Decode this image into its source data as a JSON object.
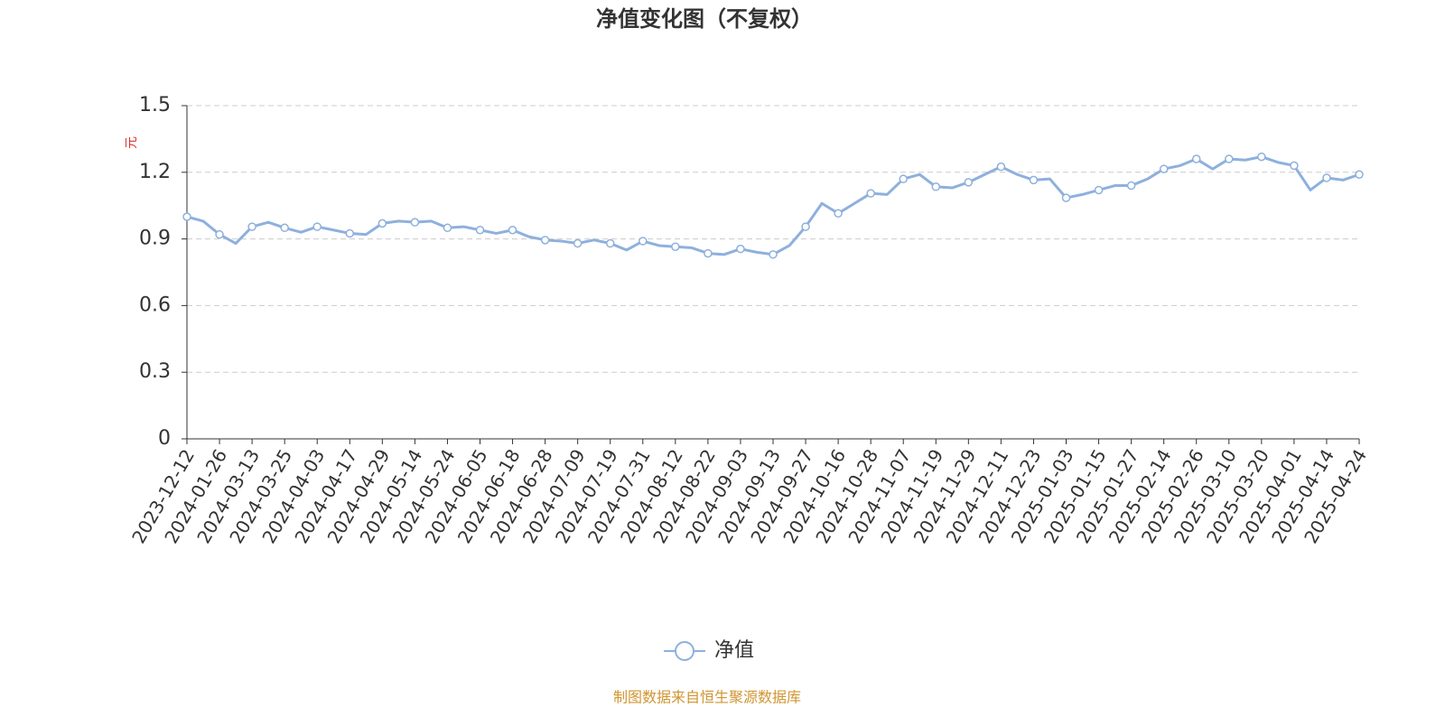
{
  "chart_data": {
    "type": "line",
    "title": "净值变化图（不复权）",
    "ylabel": "元",
    "source": "制图数据来自恒生聚源数据库",
    "ylim": [
      0,
      1.5
    ],
    "yticks": [
      0,
      0.3,
      0.6,
      0.9,
      1.2,
      1.5
    ],
    "grid": true,
    "legend": "bottom",
    "categories": [
      "2023-12-12",
      null,
      "2024-01-26",
      null,
      "2024-03-13",
      null,
      "2024-03-25",
      null,
      "2024-04-03",
      null,
      "2024-04-17",
      null,
      "2024-04-29",
      null,
      "2024-05-14",
      null,
      "2024-05-24",
      null,
      "2024-06-05",
      null,
      "2024-06-18",
      null,
      "2024-06-28",
      null,
      "2024-07-09",
      null,
      "2024-07-19",
      null,
      "2024-07-31",
      null,
      "2024-08-12",
      null,
      "2024-08-22",
      null,
      "2024-09-03",
      null,
      "2024-09-13",
      null,
      "2024-09-27",
      null,
      "2024-10-16",
      null,
      "2024-10-28",
      null,
      "2024-11-07",
      null,
      "2024-11-19",
      null,
      "2024-11-29",
      null,
      "2024-12-11",
      null,
      "2024-12-23",
      null,
      "2025-01-03",
      null,
      "2025-01-15",
      null,
      "2025-01-27",
      null,
      "2025-02-14",
      null,
      "2025-02-26",
      null,
      "2025-03-10",
      null,
      "2025-03-20",
      null,
      "2025-04-01",
      null,
      "2025-04-14",
      null,
      "2025-04-24"
    ],
    "series": [
      {
        "name": "净值",
        "color": "#8eb0dd",
        "values": [
          1.0,
          0.98,
          0.92,
          0.88,
          0.955,
          0.975,
          0.95,
          0.93,
          0.955,
          0.94,
          0.925,
          0.92,
          0.97,
          0.98,
          0.975,
          0.98,
          0.95,
          0.955,
          0.94,
          0.925,
          0.94,
          0.91,
          0.895,
          0.89,
          0.88,
          0.895,
          0.88,
          0.85,
          0.89,
          0.87,
          0.865,
          0.86,
          0.835,
          0.83,
          0.855,
          0.84,
          0.83,
          0.87,
          0.955,
          1.06,
          1.015,
          1.06,
          1.105,
          1.1,
          1.17,
          1.19,
          1.135,
          1.13,
          1.155,
          1.19,
          1.225,
          1.19,
          1.165,
          1.17,
          1.085,
          1.1,
          1.12,
          1.14,
          1.14,
          1.17,
          1.215,
          1.23,
          1.26,
          1.215,
          1.26,
          1.255,
          1.27,
          1.245,
          1.23,
          1.12,
          1.175,
          1.165,
          1.19
        ]
      }
    ]
  }
}
